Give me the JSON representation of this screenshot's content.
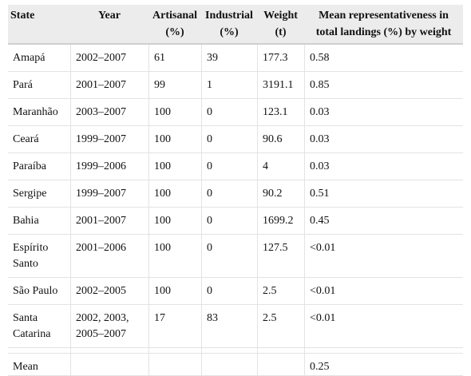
{
  "headers": {
    "state": "State",
    "year": "Year",
    "artisanal": "Artisanal (%)",
    "industrial": "Industrial (%)",
    "weight": "Weight (t)",
    "mean_rep": "Mean representativeness in total landings (%) by weight"
  },
  "rows": [
    {
      "state": "Amapá",
      "year": "2002–2007",
      "artisanal": "61",
      "industrial": "39",
      "weight": "177.3",
      "mean_rep": "0.58"
    },
    {
      "state": "Pará",
      "year": "2001–2007",
      "artisanal": "99",
      "industrial": "1",
      "weight": "3191.1",
      "mean_rep": "0.85"
    },
    {
      "state": "Maranhão",
      "year": "2003–2007",
      "artisanal": "100",
      "industrial": "0",
      "weight": "123.1",
      "mean_rep": "0.03"
    },
    {
      "state": "Ceará",
      "year": "1999–2007",
      "artisanal": "100",
      "industrial": "0",
      "weight": "90.6",
      "mean_rep": "0.03"
    },
    {
      "state": "Paraíba",
      "year": "1999–2006",
      "artisanal": "100",
      "industrial": "0",
      "weight": "4",
      "mean_rep": "0.03"
    },
    {
      "state": "Sergipe",
      "year": "1999–2007",
      "artisanal": "100",
      "industrial": "0",
      "weight": "90.2",
      "mean_rep": "0.51"
    },
    {
      "state": "Bahia",
      "year": "2001–2007",
      "artisanal": "100",
      "industrial": "0",
      "weight": "1699.2",
      "mean_rep": "0.45"
    },
    {
      "state": "Espírito Santo",
      "year": "2001–2006",
      "artisanal": "100",
      "industrial": "0",
      "weight": "127.5",
      "mean_rep": "<0.01"
    },
    {
      "state": "São Paulo",
      "year": "2002–2005",
      "artisanal": "100",
      "industrial": "0",
      "weight": "2.5",
      "mean_rep": "<0.01"
    },
    {
      "state": "Santa Catarina",
      "year": "2002, 2003, 2005–2007",
      "artisanal": "17",
      "industrial": "83",
      "weight": "2.5",
      "mean_rep": "<0.01"
    }
  ],
  "mean_row": {
    "label": "Mean",
    "mean_rep": "0.25"
  }
}
